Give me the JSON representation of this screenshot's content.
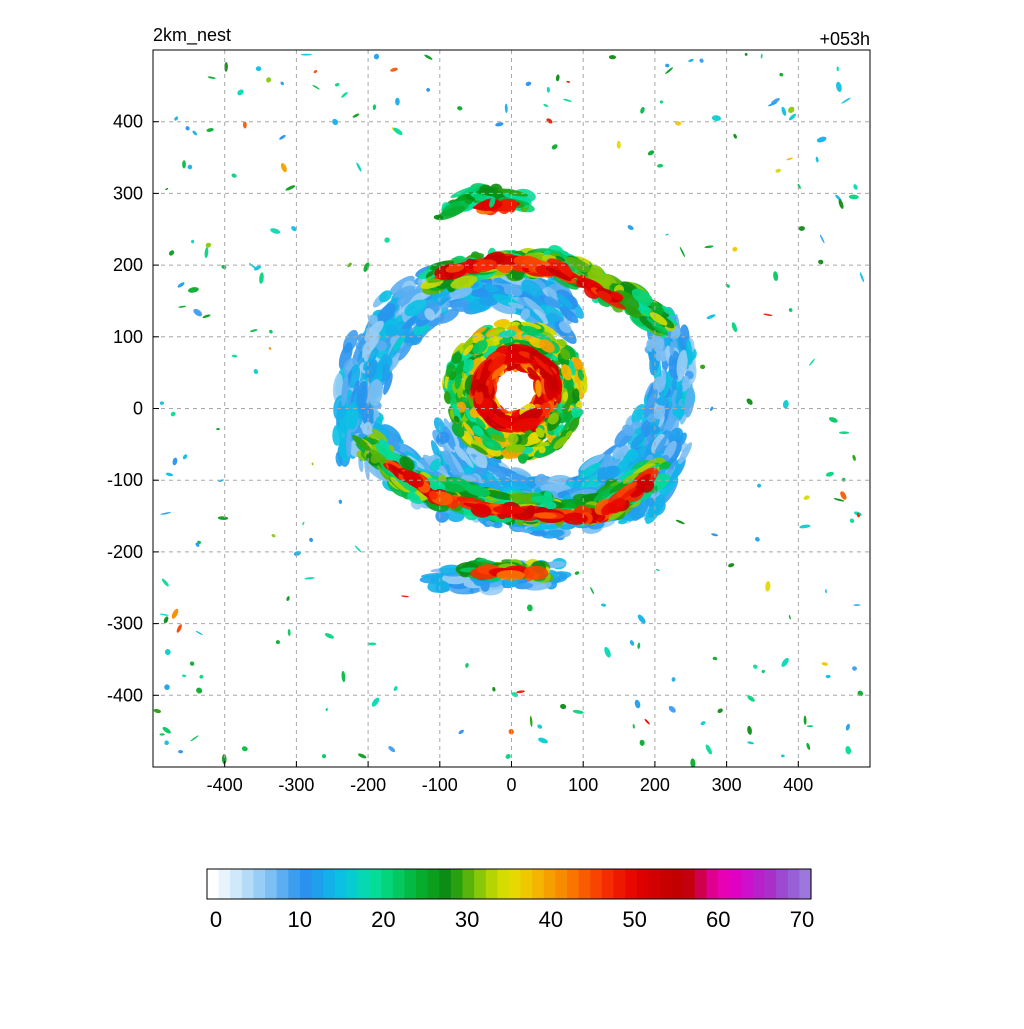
{
  "chart_data": {
    "type": "heatmap",
    "title_left": "2km_nest",
    "title_right": "+053h",
    "xlabel": "",
    "ylabel": "",
    "xlim": [
      -500,
      500
    ],
    "ylim": [
      -500,
      500
    ],
    "x_ticks": [
      -400,
      -300,
      -200,
      -100,
      0,
      100,
      200,
      300,
      400
    ],
    "y_ticks": [
      400,
      300,
      200,
      100,
      0,
      -100,
      -200,
      -300,
      -400
    ],
    "grid": true,
    "grid_style": "dashed",
    "colorbar": {
      "orientation": "horizontal",
      "placement": "bottom",
      "min": 0,
      "max": 70,
      "tick_labels": [
        "0",
        "10",
        "20",
        "30",
        "40",
        "50",
        "60",
        "70"
      ],
      "colors": [
        "#ffffff",
        "#e8f4fc",
        "#cfe8fa",
        "#b4dcf8",
        "#98cdf5",
        "#7cbff3",
        "#5aaef1",
        "#3d9ef0",
        "#2a92ee",
        "#1fa0ec",
        "#14b0ea",
        "#0cc0e4",
        "#08cdd0",
        "#06d8b4",
        "#05dc98",
        "#04d47c",
        "#04c860",
        "#05ba44",
        "#07ac2c",
        "#0a9e1c",
        "#0c8c14",
        "#2aa010",
        "#58b40c",
        "#88c808",
        "#b4d404",
        "#d4dc00",
        "#e6d800",
        "#f0c800",
        "#f4b400",
        "#f6a000",
        "#f88c00",
        "#fa7400",
        "#fa5c00",
        "#f84400",
        "#f42c00",
        "#ee1800",
        "#e80800",
        "#de0000",
        "#d20000",
        "#c80000",
        "#c20000",
        "#c40010",
        "#d0004c",
        "#e00090",
        "#e800b4",
        "#e000c4",
        "#cc10cc",
        "#b820cc",
        "#a830c8",
        "#9c48d0",
        "#9860d6",
        "#9c78dc"
      ]
    },
    "field": {
      "description_units": "km",
      "structure": [
        {
          "feature": "eye",
          "center": [
            5,
            25
          ],
          "radius": 28
        },
        {
          "feature": "eyewall",
          "center": [
            5,
            25
          ],
          "radius_range": [
            30,
            95
          ]
        },
        {
          "feature": "outer_band_south",
          "from": [
            -180,
            -80
          ],
          "to": [
            200,
            -90
          ]
        },
        {
          "feature": "outer_band_north",
          "from": [
            -120,
            180
          ],
          "to": [
            200,
            130
          ]
        },
        {
          "feature": "band_fragment_south",
          "center": [
            0,
            -230
          ]
        },
        {
          "feature": "band_fragment_north",
          "center": [
            -30,
            280
          ]
        }
      ]
    }
  }
}
